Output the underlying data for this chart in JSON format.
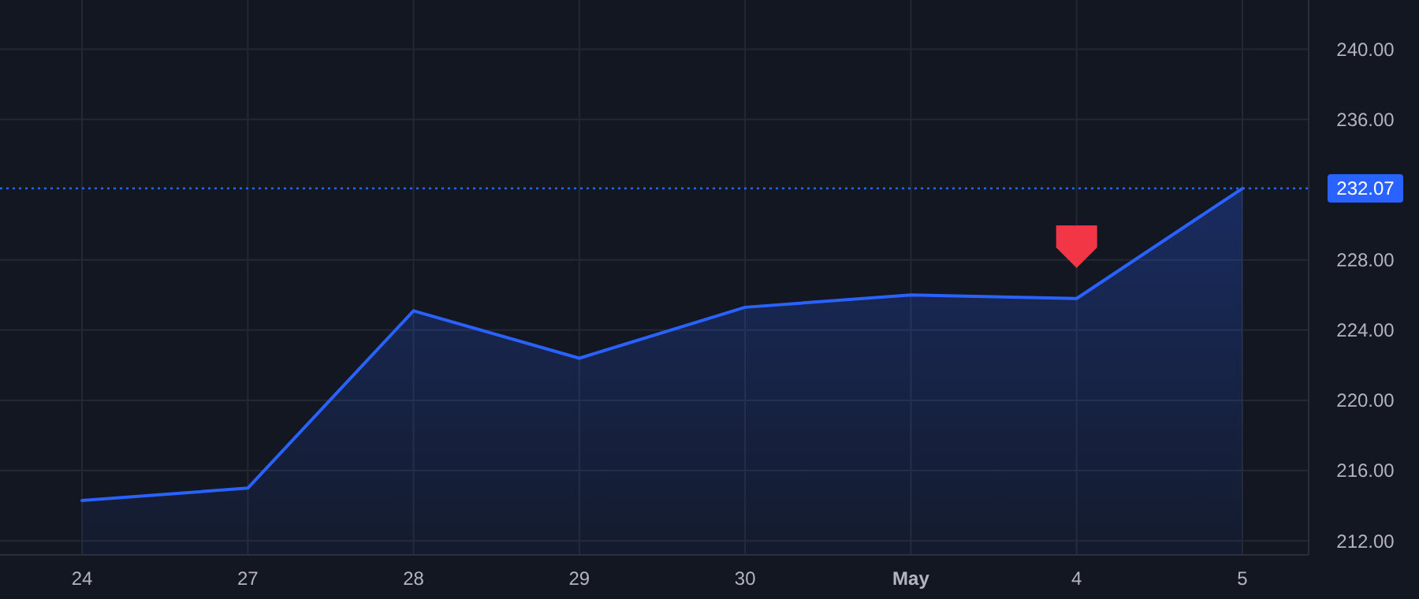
{
  "chart_data": {
    "type": "area",
    "categories": [
      "24",
      "27",
      "28",
      "29",
      "30",
      "May",
      "4",
      "5"
    ],
    "series": [
      {
        "color": "#2962ff",
        "values": [
          214.3,
          215.0,
          225.1,
          222.4,
          225.3,
          226.0,
          225.8,
          232.07
        ]
      }
    ],
    "ylim": [
      211.2,
      242.8
    ],
    "yticks": [
      {
        "value": 212,
        "label": "212.00"
      },
      {
        "value": 216,
        "label": "216.00"
      },
      {
        "value": 220,
        "label": "220.00"
      },
      {
        "value": 224,
        "label": "224.00"
      },
      {
        "value": 228,
        "label": "228.00"
      },
      {
        "value": 236,
        "label": "236.00"
      },
      {
        "value": 240,
        "label": "240.00"
      }
    ],
    "grid": true,
    "ref_lines": [
      {
        "axis": "y",
        "value": 232.07,
        "label": "232.07",
        "color": "#2962ff",
        "line_style": "dotted"
      }
    ]
  }
}
